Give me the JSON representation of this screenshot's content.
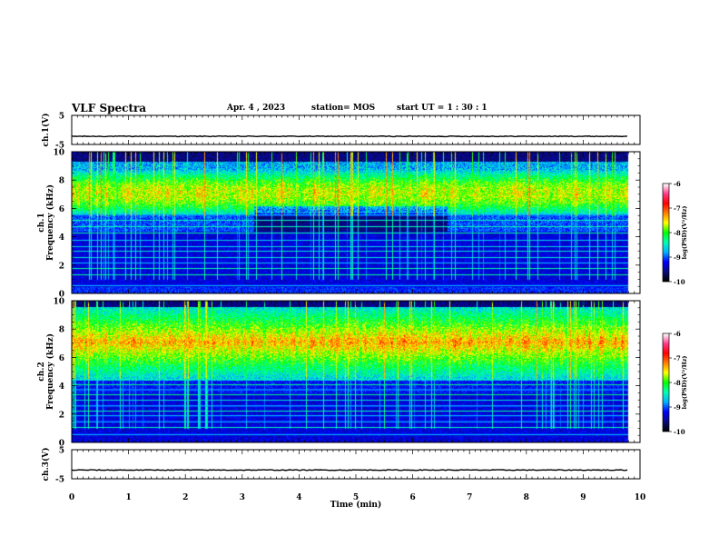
{
  "header": {
    "title": "VLF Spectra",
    "date": "Apr. 4  , 2023",
    "station": "station= MOS",
    "start_ut": "start  UT =   1 : 30 : 1"
  },
  "colormap": {
    "stops": [
      "#000000",
      "#0a0a80",
      "#0000ff",
      "#00b4ff",
      "#00ffb4",
      "#00ff00",
      "#ffff00",
      "#ff8000",
      "#ff0000",
      "#ff3c8c",
      "#ffffff"
    ]
  },
  "chart_data": [
    {
      "type": "line",
      "panel": "ch1_voltage",
      "ylabel": "ch.1(V)",
      "ylim": [
        -5,
        5
      ],
      "yticks": [
        "5",
        "-5"
      ],
      "xlim": [
        0,
        10
      ],
      "series": [
        {
          "x": [
            0,
            9.8
          ],
          "values": [
            -2.2,
            -2.2
          ]
        }
      ]
    },
    {
      "type": "heatmap",
      "panel": "ch1_spectrogram",
      "ylabel": "ch.1\nFrequency (kHz)",
      "ylim": [
        0,
        10
      ],
      "yticks": [
        "0",
        "2",
        "4",
        "6",
        "8",
        "10"
      ],
      "xlim": [
        0,
        10
      ],
      "data_extent_min": 9.8,
      "colorbar": {
        "label": "log(PSD)(V²/Hz)",
        "range": [
          -10,
          -6
        ],
        "ticks": [
          "-6",
          "-7",
          "-8",
          "-9",
          "-10"
        ]
      }
    },
    {
      "type": "heatmap",
      "panel": "ch2_spectrogram",
      "ylabel": "ch.2\nFrequency (kHz)",
      "ylim": [
        0,
        10
      ],
      "yticks": [
        "0",
        "2",
        "4",
        "6",
        "8",
        "10"
      ],
      "xlim": [
        0,
        10
      ],
      "data_extent_min": 9.8,
      "colorbar": {
        "label": "log(PSD)(V²/Hz)",
        "range": [
          -10,
          -6
        ],
        "ticks": [
          "-6",
          "-7",
          "-8",
          "-9",
          "-10"
        ]
      }
    },
    {
      "type": "line",
      "panel": "ch3_voltage",
      "ylabel": "ch.3(V)",
      "ylim": [
        -5,
        5
      ],
      "yticks": [
        "5",
        "-5"
      ],
      "xlim": [
        0,
        10
      ],
      "xlabel": "Time  (min)",
      "xticks": [
        "0",
        "1",
        "2",
        "3",
        "4",
        "5",
        "6",
        "7",
        "8",
        "9",
        "10"
      ],
      "series": [
        {
          "x": [
            0,
            9.8
          ],
          "values": [
            -2.0,
            -2.0
          ]
        }
      ]
    }
  ]
}
